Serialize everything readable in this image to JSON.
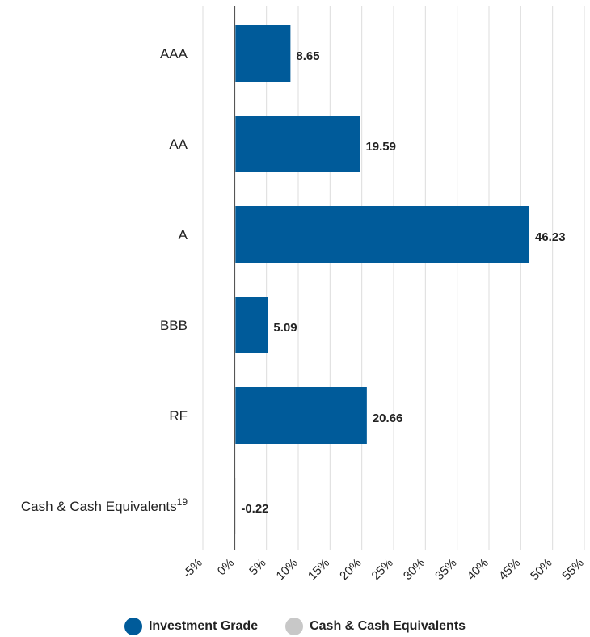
{
  "chart_data": {
    "type": "bar",
    "orientation": "horizontal",
    "categories": [
      "AAA",
      "AA",
      "A",
      "BBB",
      "RF",
      "Cash & Cash Equivalents"
    ],
    "category_superscripts": [
      "",
      "",
      "",
      "",
      "",
      "19"
    ],
    "values": [
      8.65,
      19.59,
      46.23,
      5.09,
      20.66,
      -0.22
    ],
    "value_labels": [
      "8.65",
      "19.59",
      "46.23",
      "5.09",
      "20.66",
      "-0.22"
    ],
    "bar_colors": [
      "#005b9a",
      "#005b9a",
      "#005b9a",
      "#005b9a",
      "#005b9a",
      "#c8c8c8"
    ],
    "xlim": [
      -5,
      55
    ],
    "xticks": [
      -5,
      0,
      5,
      10,
      15,
      20,
      25,
      30,
      35,
      40,
      45,
      50,
      55
    ],
    "xtick_labels": [
      "-5%",
      "0%",
      "5%",
      "10%",
      "15%",
      "20%",
      "25%",
      "30%",
      "35%",
      "40%",
      "45%",
      "50%",
      "55%"
    ],
    "grid": "vertical",
    "legend_position": "bottom-center",
    "legend": [
      {
        "name": "Investment Grade",
        "color": "#005b9a"
      },
      {
        "name": "Cash & Cash Equivalents",
        "color": "#c8c8c8"
      }
    ]
  }
}
